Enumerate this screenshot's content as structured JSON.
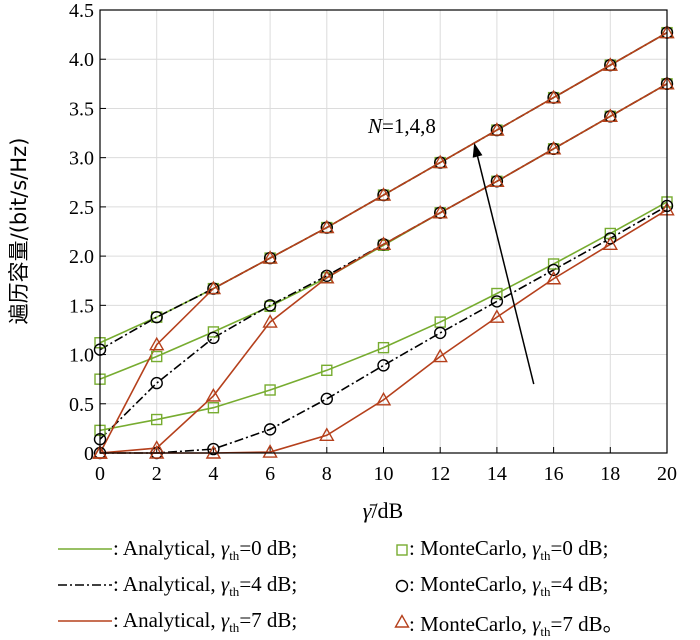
{
  "chart_data": {
    "type": "line",
    "xlabel": "γ̄/dB",
    "ylabel": "遍历容量/(bit/s/Hz)",
    "xlim": [
      0,
      20
    ],
    "ylim": [
      0,
      4.5
    ],
    "xticks": [
      "0",
      "2",
      "4",
      "6",
      "8",
      "10",
      "12",
      "14",
      "16",
      "18",
      "20"
    ],
    "yticks": [
      "0",
      "0.5",
      "1.0",
      "1.5",
      "2.0",
      "2.5",
      "3.0",
      "3.5",
      "4.0",
      "4.5"
    ],
    "grid": true,
    "annotation": {
      "text": "N=1,4,8",
      "arrow_from": [
        15.3,
        0.7
      ],
      "arrow_to": [
        13.2,
        3.15
      ]
    },
    "x": [
      0,
      2,
      4,
      6,
      8,
      10,
      12,
      14,
      16,
      18,
      20
    ],
    "series": [
      {
        "group": "γth=0 dB",
        "style": "green",
        "values": [
          0.23,
          0.34,
          0.46,
          0.64,
          0.84,
          1.07,
          1.33,
          1.62,
          1.92,
          2.23,
          2.55
        ]
      },
      {
        "group": "γth=0 dB",
        "style": "green",
        "values": [
          0.75,
          0.98,
          1.23,
          1.49,
          1.78,
          2.11,
          2.44,
          2.76,
          3.09,
          3.42,
          3.75
        ]
      },
      {
        "group": "γth=0 dB",
        "style": "green",
        "values": [
          1.12,
          1.38,
          1.67,
          1.98,
          2.29,
          2.62,
          2.95,
          3.28,
          3.61,
          3.94,
          4.27
        ]
      },
      {
        "group": "γth=4 dB",
        "style": "black",
        "values": [
          0.0,
          0.0,
          0.04,
          0.24,
          0.55,
          0.89,
          1.22,
          1.54,
          1.86,
          2.18,
          2.51
        ]
      },
      {
        "group": "γth=4 dB",
        "style": "black",
        "values": [
          0.14,
          0.71,
          1.17,
          1.5,
          1.8,
          2.12,
          2.44,
          2.76,
          3.09,
          3.42,
          3.75
        ]
      },
      {
        "group": "γth=4 dB",
        "style": "black",
        "values": [
          1.05,
          1.38,
          1.67,
          1.98,
          2.29,
          2.62,
          2.95,
          3.28,
          3.61,
          3.94,
          4.27
        ]
      },
      {
        "group": "γth=7 dB",
        "style": "red",
        "values": [
          0.0,
          0.0,
          0.0,
          0.01,
          0.18,
          0.54,
          0.98,
          1.38,
          1.77,
          2.12,
          2.47
        ]
      },
      {
        "group": "γth=7 dB",
        "style": "red",
        "values": [
          0.0,
          0.05,
          0.58,
          1.33,
          1.78,
          2.12,
          2.44,
          2.76,
          3.09,
          3.42,
          3.75
        ]
      },
      {
        "group": "γth=7 dB",
        "style": "red",
        "values": [
          0.0,
          1.1,
          1.67,
          1.98,
          2.29,
          2.62,
          2.95,
          3.28,
          3.61,
          3.94,
          4.27
        ]
      }
    ],
    "styles": {
      "green": {
        "color": "#77ac30",
        "dash": "",
        "marker": "square"
      },
      "black": {
        "color": "#000000",
        "dash": "9,3,2,3",
        "marker": "circle"
      },
      "red": {
        "color": "#b5401c",
        "dash": "",
        "marker": "triangle"
      }
    }
  },
  "legend": {
    "rows": [
      {
        "prefix": ": Analytical,",
        "thr": "=0 dB;",
        "mc_prefix": ": MonteCarlo,",
        "mc_thr": "=0 dB;",
        "style": "green"
      },
      {
        "prefix": ": Analytical,",
        "thr": "=4 dB;",
        "mc_prefix": ": MonteCarlo,",
        "mc_thr": "=4 dB;",
        "style": "black"
      },
      {
        "prefix": ": Analytical,",
        "thr": "=7 dB;",
        "mc_prefix": ": MonteCarlo,",
        "mc_thr": "=7 dB。",
        "style": "red"
      }
    ],
    "gamma": "γ",
    "th": "th"
  }
}
